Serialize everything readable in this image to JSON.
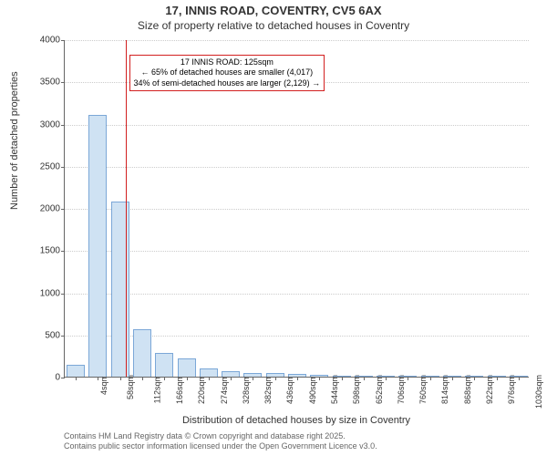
{
  "titles": {
    "main": "17, INNIS ROAD, COVENTRY, CV5 6AX",
    "sub": "Size of property relative to detached houses in Coventry"
  },
  "axes": {
    "ylabel": "Number of detached properties",
    "xlabel": "Distribution of detached houses by size in Coventry",
    "ylim": [
      0,
      4000
    ],
    "ytick_step": 500,
    "grid_color": "#cccccc",
    "axis_color": "#666666",
    "tick_fontsize": 10,
    "label_fontsize": 11
  },
  "xticks": {
    "start": 4,
    "step": 54,
    "count": 21,
    "unit": "sqm"
  },
  "bars": {
    "fill_color": "#cfe2f3",
    "stroke_color": "#7ba7d7",
    "stroke_width": 1,
    "values": [
      140,
      3100,
      2080,
      560,
      280,
      220,
      100,
      60,
      40,
      40,
      30,
      20,
      15,
      10,
      10,
      8,
      6,
      5,
      4,
      3,
      2
    ]
  },
  "marker": {
    "x_sqm": 125,
    "color": "#d21f1f",
    "box_border": "#d21f1f",
    "lines": [
      "17 INNIS ROAD: 125sqm",
      "← 65% of detached houses are smaller (4,017)",
      "34% of semi-detached houses are larger (2,129) →"
    ]
  },
  "credits": [
    "Contains HM Land Registry data © Crown copyright and database right 2025.",
    "Contains public sector information licensed under the Open Government Licence v3.0."
  ],
  "colors": {
    "background": "#ffffff",
    "text": "#333333",
    "muted": "#666666"
  }
}
